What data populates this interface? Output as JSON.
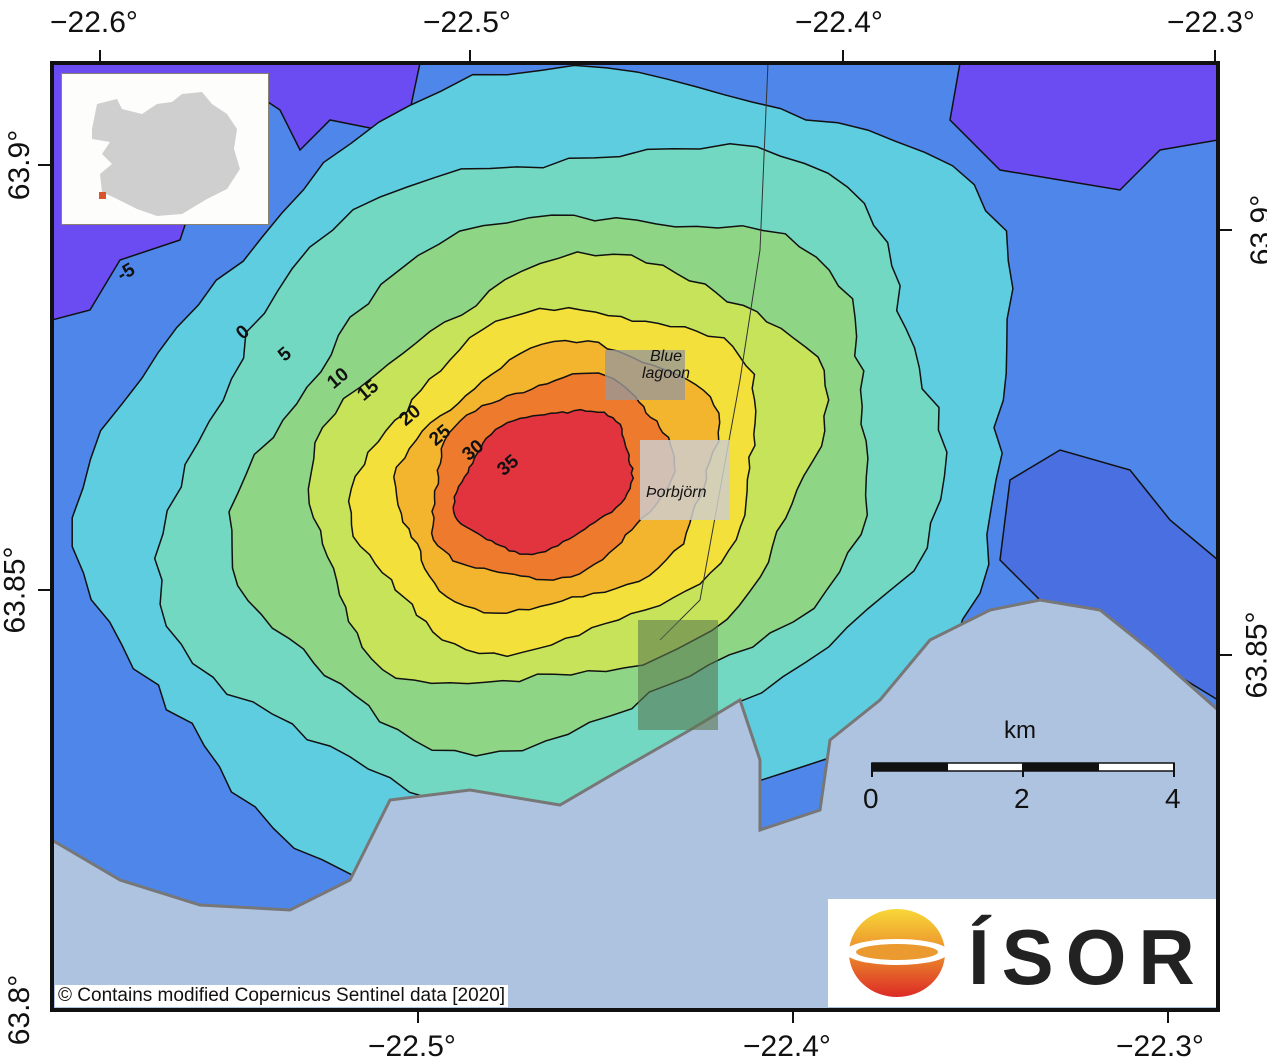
{
  "axes": {
    "top_lon": [
      "−22.6°",
      "−22.5°",
      "−22.4°",
      "−22.3°"
    ],
    "bottom_lon": [
      "−22.5°",
      "−22.4°",
      "−22.3°"
    ],
    "left_lat": [
      "63.9°",
      "63.85°",
      "63.8°"
    ],
    "right_lat": [
      "63.9°",
      "63.85°"
    ]
  },
  "contours": {
    "labels": [
      "-5",
      "0",
      "5",
      "10",
      "15",
      "20",
      "25",
      "30",
      "35"
    ],
    "colors": {
      "-5": "#6b4cf2",
      "0": "#4f86ea",
      "5": "#5ecde0",
      "10": "#72d8c2",
      "15": "#8ed686",
      "20": "#c6e35a",
      "25": "#f4e03a",
      "30": "#f4b52e",
      "35": "#ee7a2e",
      "max": "#e2343f"
    }
  },
  "places": {
    "blue_lagoon": "Blue lagoon",
    "thorbjorn": "Þorbjörn"
  },
  "scalebar": {
    "unit": "km",
    "ticks": [
      "0",
      "2",
      "4"
    ]
  },
  "credit": "© Contains modified Copernicus Sentinel data [2020]",
  "logo": {
    "text": "ÍSOR"
  },
  "colors": {
    "sea": "#aec3e0",
    "inset_marker": "#d9542a",
    "inset_land": "#cfcfcf"
  }
}
